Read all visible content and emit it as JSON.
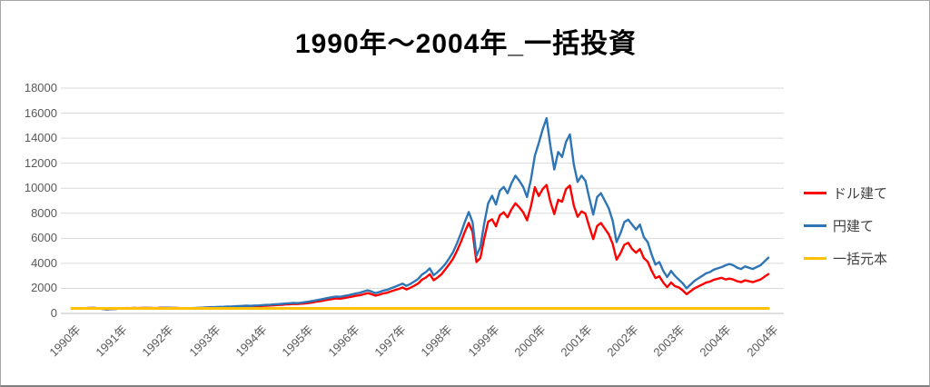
{
  "title": "1990年～2004年_一括投資",
  "colors": {
    "background": "#FFFFFF",
    "gridline": "#D9D9D9",
    "axis_line": "#BFBFBF",
    "tick_text": "#595959",
    "legend_text": "#404040",
    "title_text": "#000000"
  },
  "chart_data": {
    "type": "line",
    "title": "1990年～2004年_一括投資",
    "xlabel": "",
    "ylabel": "",
    "ylim": [
      0,
      18000
    ],
    "y_ticks": [
      0,
      2000,
      4000,
      6000,
      8000,
      10000,
      12000,
      14000,
      16000,
      18000
    ],
    "grid": true,
    "legend_position": "right",
    "x_unit": "month",
    "x_range": "1990-01 to 2004-12",
    "x_tick_labels": [
      "1990年",
      "1991年",
      "1992年",
      "1993年",
      "1994年",
      "1995年",
      "1996年",
      "1997年",
      "1998年",
      "1999年",
      "2000年",
      "2001年",
      "2002年",
      "2003年",
      "2004年",
      "2004年"
    ],
    "series": [
      {
        "id": "dollar",
        "name": "ドル建て",
        "color": "#FF0000",
        "values": [
          400,
          388,
          402,
          410,
          425,
          445,
          430,
          400,
          355,
          318,
          338,
          352,
          385,
          415,
          430,
          420,
          435,
          425,
          432,
          445,
          438,
          430,
          428,
          455,
          455,
          448,
          438,
          432,
          418,
          412,
          410,
          418,
          430,
          445,
          462,
          480,
          472,
          481,
          491,
          500,
          514,
          524,
          538,
          552,
          566,
          580,
          571,
          594,
          580,
          600,
          620,
          635,
          655,
          675,
          690,
          720,
          735,
          765,
          745,
          780,
          795,
          840,
          885,
          940,
          990,
          1045,
          1105,
          1150,
          1195,
          1175,
          1230,
          1285,
          1335,
          1405,
          1445,
          1535,
          1615,
          1545,
          1420,
          1490,
          1595,
          1650,
          1755,
          1860,
          1955,
          2070,
          1915,
          2045,
          2215,
          2390,
          2695,
          2870,
          3130,
          2650,
          2870,
          3130,
          3525,
          3930,
          4375,
          5000,
          5715,
          6520,
          7230,
          6520,
          4105,
          4420,
          6000,
          7330,
          7520,
          6960,
          7840,
          8080,
          7680,
          8320,
          8800,
          8480,
          8080,
          7440,
          8560,
          10080,
          9380,
          9930,
          10260,
          8930,
          7930,
          9080,
          8930,
          9930,
          10210,
          8620,
          7720,
          8150,
          7970,
          6920,
          5940,
          6990,
          7220,
          6770,
          6320,
          5560,
          4290,
          4810,
          5490,
          5640,
          5145,
          4855,
          5145,
          4420,
          4130,
          3405,
          2825,
          2970,
          2465,
          2100,
          2465,
          2175,
          2075,
          1845,
          1540,
          1770,
          2000,
          2155,
          2310,
          2460,
          2540,
          2690,
          2770,
          2845,
          2710,
          2780,
          2710,
          2570,
          2500,
          2640,
          2570,
          2500,
          2605,
          2710,
          2925,
          3135
        ]
      },
      {
        "id": "yen",
        "name": "円建て",
        "color": "#2E75B6",
        "values": [
          400,
          392,
          405,
          415,
          428,
          440,
          435,
          405,
          360,
          325,
          345,
          355,
          375,
          405,
          418,
          412,
          425,
          418,
          424,
          436,
          430,
          424,
          420,
          445,
          455,
          450,
          440,
          430,
          420,
          415,
          412,
          420,
          432,
          448,
          465,
          485,
          500,
          510,
          520,
          530,
          545,
          555,
          570,
          585,
          600,
          615,
          605,
          630,
          640,
          660,
          680,
          700,
          720,
          740,
          760,
          790,
          810,
          840,
          820,
          860,
          900,
          950,
          1000,
          1060,
          1120,
          1180,
          1250,
          1300,
          1350,
          1330,
          1390,
          1450,
          1520,
          1600,
          1650,
          1750,
          1840,
          1760,
          1620,
          1700,
          1820,
          1880,
          2000,
          2120,
          2250,
          2380,
          2200,
          2350,
          2550,
          2750,
          3100,
          3300,
          3600,
          3050,
          3300,
          3600,
          3950,
          4400,
          4900,
          5600,
          6400,
          7300,
          8100,
          7300,
          4600,
          5300,
          7200,
          8800,
          9400,
          8700,
          9800,
          10100,
          9600,
          10400,
          11000,
          10600,
          10100,
          9300,
          10700,
          12600,
          13600,
          14700,
          15600,
          13400,
          11500,
          12900,
          12500,
          13700,
          14300,
          11900,
          10500,
          11000,
          10600,
          9200,
          7900,
          9300,
          9600,
          9000,
          8400,
          7400,
          5700,
          6400,
          7300,
          7500,
          7100,
          6700,
          7100,
          6100,
          5700,
          4700,
          3900,
          4100,
          3400,
          2900,
          3400,
          3000,
          2700,
          2400,
          2000,
          2300,
          2600,
          2800,
          3000,
          3200,
          3300,
          3500,
          3600,
          3700,
          3850,
          3950,
          3850,
          3650,
          3550,
          3750,
          3650,
          3550,
          3700,
          3850,
          4150,
          4450
        ]
      },
      {
        "id": "principal",
        "name": "一括元本",
        "color": "#FFC000",
        "constant": 400
      }
    ]
  }
}
